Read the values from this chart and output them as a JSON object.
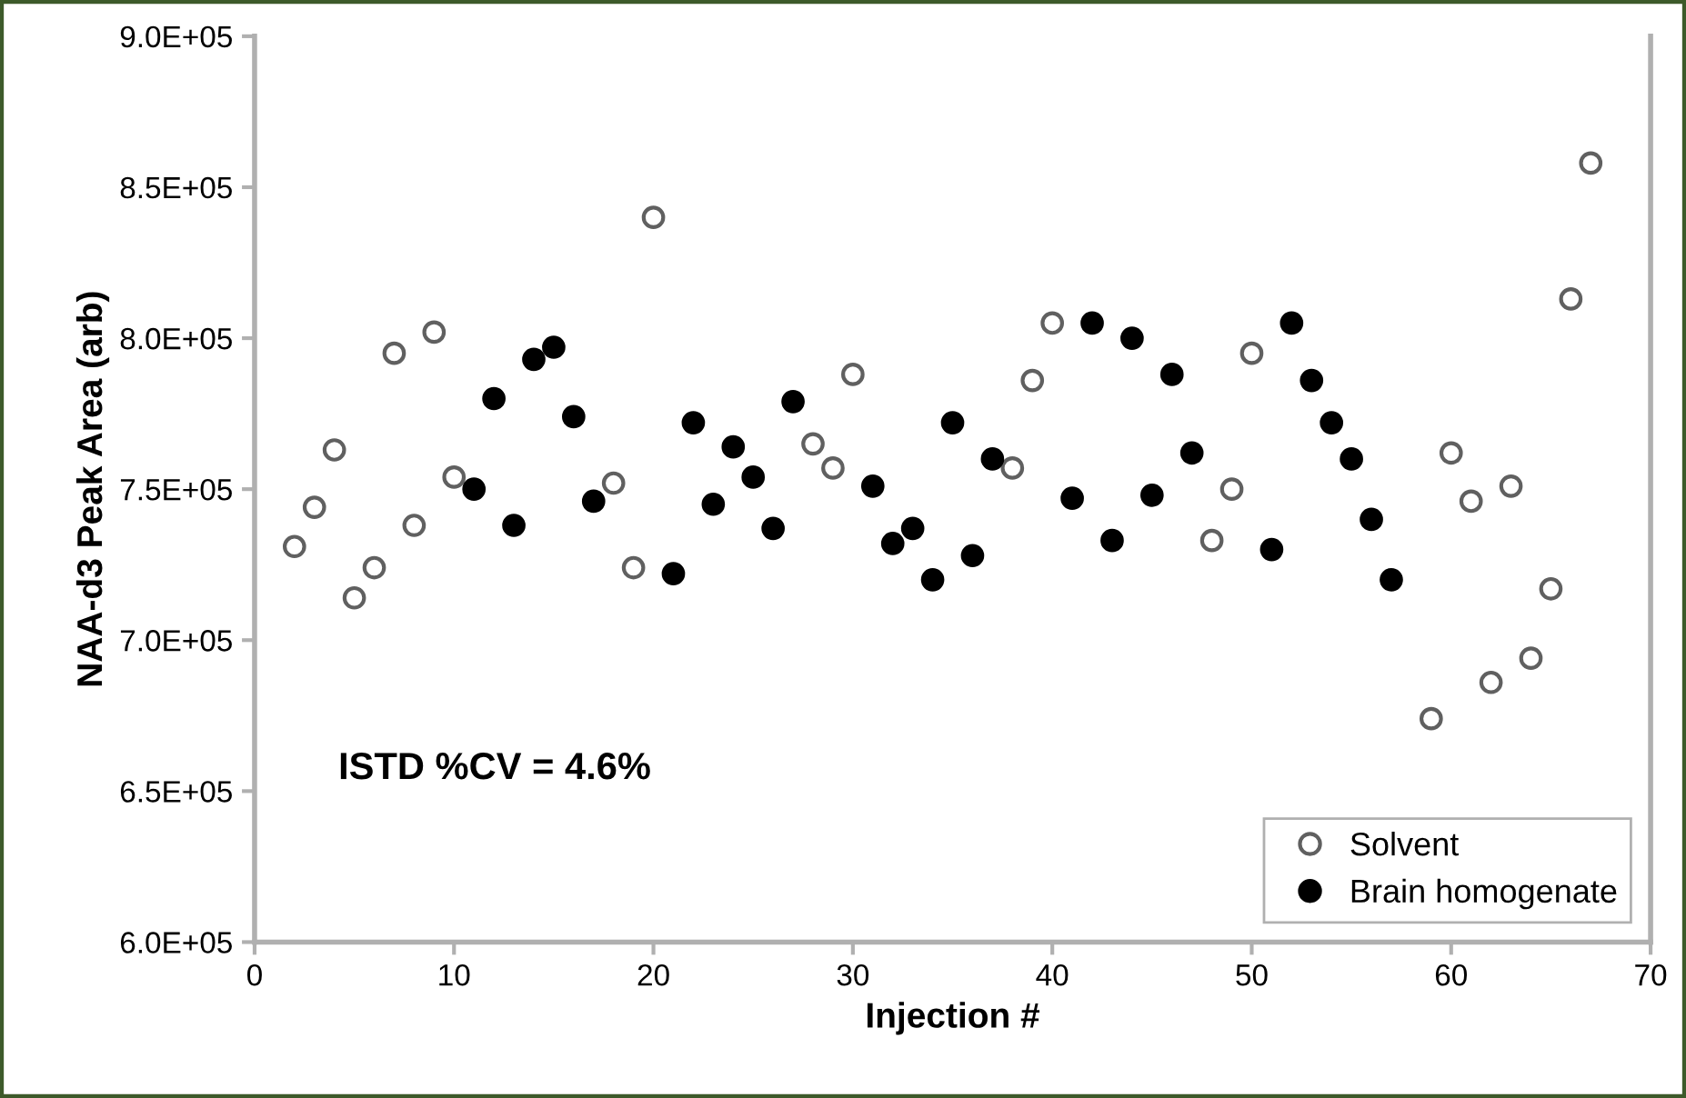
{
  "chart_data": {
    "type": "scatter",
    "xlabel": "Injection #",
    "ylabel": "NAA-d3 Peak Area (arb)",
    "xlim": [
      0,
      70
    ],
    "xticks": [
      0,
      10,
      20,
      30,
      40,
      50,
      60,
      70
    ],
    "ylim": [
      600000,
      900000
    ],
    "yticks": [
      {
        "value": 600000,
        "label": "6.0E+05"
      },
      {
        "value": 650000,
        "label": "6.5E+05"
      },
      {
        "value": 700000,
        "label": "7.0E+05"
      },
      {
        "value": 750000,
        "label": "7.5E+05"
      },
      {
        "value": 800000,
        "label": "8.0E+05"
      },
      {
        "value": 850000,
        "label": "8.5E+05"
      },
      {
        "value": 900000,
        "label": "9.0E+05"
      }
    ],
    "grid": false,
    "legend": "bottom right",
    "marker": "circle",
    "annotations": [
      "ISTD %CV = 4.6%"
    ],
    "series": [
      {
        "name": "Solvent",
        "color": "#ffffff",
        "x": [
          2,
          3,
          4,
          5,
          6,
          7,
          8,
          9,
          10,
          18,
          19,
          20,
          28,
          29,
          30,
          38,
          39,
          40,
          48,
          49,
          50,
          59,
          60,
          61,
          62,
          63,
          64,
          65,
          66,
          67
        ],
        "values": [
          731000,
          744000,
          763000,
          714000,
          724000,
          795000,
          738000,
          802000,
          754000,
          752000,
          724000,
          840000,
          765000,
          757000,
          788000,
          757000,
          786000,
          805000,
          733000,
          750000,
          795000,
          674000,
          762000,
          746000,
          686000,
          751000,
          694000,
          717000,
          813000,
          858000
        ]
      },
      {
        "name": "Brain homogenate",
        "color": "#000000",
        "x": [
          11,
          12,
          13,
          14,
          15,
          16,
          17,
          21,
          22,
          23,
          24,
          25,
          26,
          27,
          31,
          32,
          33,
          34,
          35,
          36,
          37,
          41,
          42,
          43,
          44,
          45,
          46,
          47,
          51,
          52,
          53,
          54,
          55,
          56,
          57
        ],
        "values": [
          750000,
          780000,
          738000,
          793000,
          797000,
          774000,
          746000,
          722000,
          772000,
          745000,
          764000,
          754000,
          737000,
          779000,
          751000,
          732000,
          737000,
          720000,
          772000,
          728000,
          760000,
          747000,
          805000,
          733000,
          800000,
          748000,
          788000,
          762000,
          730000,
          805000,
          786000,
          772000,
          760000,
          740000,
          720000
        ]
      }
    ]
  }
}
